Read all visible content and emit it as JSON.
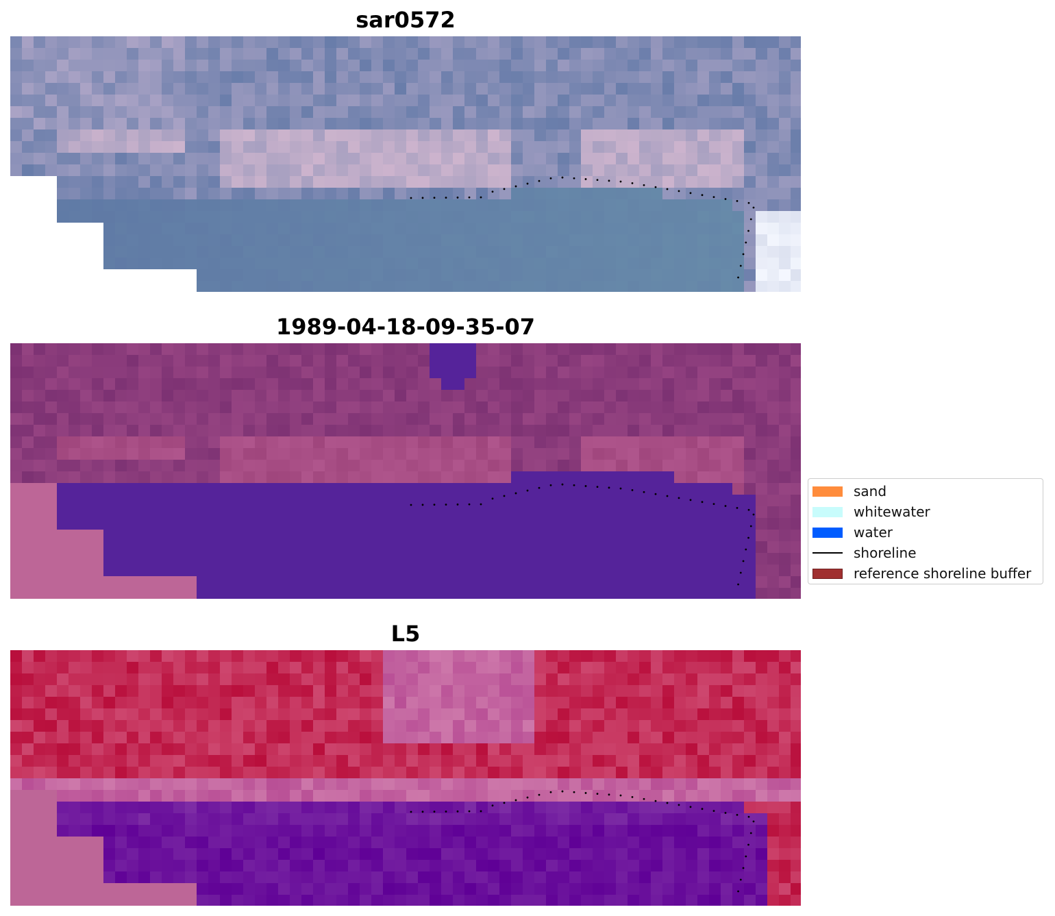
{
  "panels": [
    {
      "title": "sar0572",
      "style": "rgb"
    },
    {
      "title": "1989-04-18-09-35-07",
      "style": "classified"
    },
    {
      "title": "L5",
      "style": "false-color"
    }
  ],
  "legend": {
    "items": [
      {
        "label": "sand",
        "kind": "patch",
        "color": "#ff8c3c"
      },
      {
        "label": "whitewater",
        "kind": "patch",
        "color": "#c8fcfc"
      },
      {
        "label": "water",
        "kind": "patch",
        "color": "#005cff"
      },
      {
        "label": "shoreline",
        "kind": "line",
        "color": "#000000"
      },
      {
        "label": "reference shoreline buffer",
        "kind": "patch",
        "color": "#a03030"
      }
    ]
  },
  "colors": {
    "no_data_rgb": "#ffffff",
    "no_data_mask": "#bd6697",
    "water_class": "#55239a",
    "shoreline_dots": "#000000"
  }
}
